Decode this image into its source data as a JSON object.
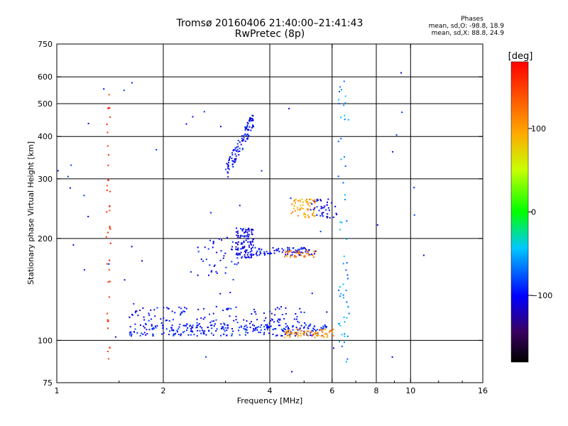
{
  "header": {
    "title_line1": "Tromsø 20160406 21:40:00–21:41:43",
    "title_line2": "RwPretec (8p)"
  },
  "phases": {
    "heading": "Phases",
    "line_o": "mean, sd,O: -98.8, 18.9",
    "line_x": "mean, sd,X: 88.8, 24.9"
  },
  "colorbar": {
    "unit": "[deg]",
    "ticks": [
      {
        "value": 100,
        "label": "100"
      },
      {
        "value": 0,
        "label": "0"
      },
      {
        "value": -100,
        "label": "−100"
      }
    ],
    "range": [
      -180,
      180
    ]
  },
  "chart_data": {
    "type": "scatter",
    "title": "Tromsø 20160406 21:40:00–21:41:43",
    "subtitle": "RwPretec (8p)",
    "xlabel": "Frequency [MHz]",
    "ylabel": "Stationary phase Virtual Height [km]",
    "xscale": "log",
    "yscale": "log",
    "xlim": [
      1,
      16
    ],
    "ylim": [
      75,
      750
    ],
    "xticks": [
      1,
      2,
      4,
      6,
      8,
      10,
      16
    ],
    "yticks": [
      75,
      100,
      200,
      300,
      400,
      500,
      600,
      750
    ],
    "grid": true,
    "xgrid": [
      2,
      4,
      6,
      8,
      10
    ],
    "ygrid": [
      100,
      200,
      300,
      400,
      500,
      600
    ],
    "color_scale": "phase in degrees, rainbow (black -180 to red +180)",
    "clusters": [
      {
        "name": "E-region trace",
        "x_range": [
          1.6,
          5.8
        ],
        "y_range": [
          103,
          112
        ],
        "phase": -95
      },
      {
        "name": "E-region trace (hi freq)",
        "x_range": [
          4.4,
          6.1
        ],
        "y_range": [
          102,
          108
        ],
        "phase": 110
      },
      {
        "name": "Es scatter",
        "x_range": [
          1.6,
          5.2
        ],
        "y_range": [
          108,
          126
        ],
        "phase": -100
      },
      {
        "name": "F-trace low",
        "x_range": [
          2.5,
          3.3
        ],
        "y_range": [
          155,
          200
        ],
        "phase": -100
      },
      {
        "name": "F-trace blob",
        "x_range": [
          3.2,
          3.6
        ],
        "y_range": [
          175,
          215
        ],
        "phase": -105
      },
      {
        "name": "F-trace 185km",
        "x_range": [
          3.6,
          5.4
        ],
        "y_range": [
          178,
          188
        ],
        "phase": -100
      },
      {
        "name": "F-trace X",
        "x_range": [
          4.4,
          5.4
        ],
        "y_range": [
          176,
          184
        ],
        "phase": 120
      },
      {
        "name": "F cusp",
        "x_range": [
          3.0,
          3.6
        ],
        "y_range": [
          310,
          450
        ],
        "phase": -100
      },
      {
        "name": "X trace upper",
        "x_range": [
          4.6,
          5.4
        ],
        "y_range": [
          230,
          262
        ],
        "phase": 100
      },
      {
        "name": "O trace upper",
        "x_range": [
          5.2,
          6.2
        ],
        "y_range": [
          230,
          262
        ],
        "phase": -105
      },
      {
        "name": "noise col 1.4 MHz",
        "x_range": [
          1.38,
          1.42
        ],
        "y_range": [
          80,
          540
        ],
        "phase": 160
      },
      {
        "name": "noise col 6.3 MHz",
        "x_range": [
          6.25,
          6.7
        ],
        "y_range": [
          80,
          610
        ],
        "phase": -60
      },
      {
        "name": "sparse points",
        "x_range": [
          1,
          12.5
        ],
        "y_range": [
          80,
          620
        ],
        "phase": -100
      }
    ]
  }
}
